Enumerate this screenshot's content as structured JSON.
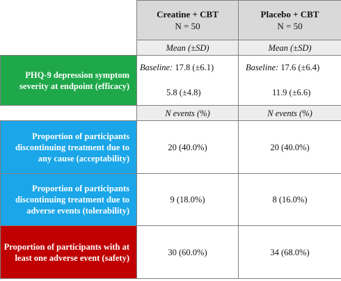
{
  "columns": [
    {
      "name": "Creatine + CBT",
      "n": "N = 50"
    },
    {
      "name": "Placebo + CBT",
      "n": "N = 50"
    }
  ],
  "subheaders": {
    "mean": [
      "Mean (±SD)",
      "Mean (±SD)"
    ],
    "events": [
      "N events (%)",
      "N events (%)"
    ]
  },
  "rows": {
    "efficacy": {
      "label": "PHQ-9 depression symptom severity at endpoint (efficacy)",
      "color": "#1fa84a",
      "baseline_prefix": "Baseline:",
      "col1_baseline": " 17.8 (±6.1)",
      "col1_endpoint": "5.8 (±4.8)",
      "col2_baseline": " 17.6 (±6.4)",
      "col2_endpoint": "11.9 (±6.6)"
    },
    "acceptability": {
      "label": "Proportion of participants discontinuing treatment due to any cause (acceptability)",
      "color": "#1aa6e8",
      "col1": "20 (40.0%)",
      "col2": "20 (40.0%)"
    },
    "tolerability": {
      "label": "Proportion of participants discontinuing treatment due to adverse events (tolerability)",
      "color": "#1aa6e8",
      "col1": "9 (18.0%)",
      "col2": "8 (16.0%)"
    },
    "safety": {
      "label": "Proportion of participants with at least one adverse event (safety)",
      "color": "#c00000",
      "col1": "30 (60.0%)",
      "col2": "34 (68.0%)"
    }
  }
}
